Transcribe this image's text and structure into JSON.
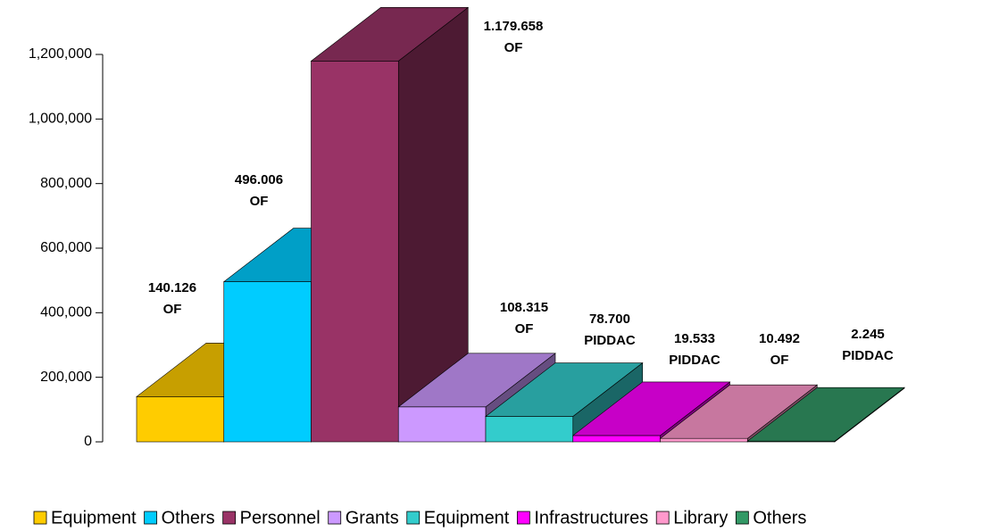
{
  "chart_data": {
    "type": "bar3d",
    "categories": [
      "Equipment",
      "Others",
      "Personnel",
      "Grants",
      "Equipment",
      "Infrastructures",
      "Library",
      "Others"
    ],
    "values": [
      140126,
      496006,
      1179658,
      108315,
      78700,
      19533,
      10492,
      2245
    ],
    "value_labels": [
      "140.126",
      "496.006",
      "1.179.658",
      "108.315",
      "78.700",
      "19.533",
      "10.492",
      "2.245"
    ],
    "fund_sources": [
      "OF",
      "OF",
      "OF",
      "OF",
      "PIDDAC",
      "PIDDAC",
      "OF",
      "PIDDAC"
    ],
    "colors": [
      "#ffcc00",
      "#00ccff",
      "#993366",
      "#cc99ff",
      "#33cccc",
      "#ff00ff",
      "#ff99cc",
      "#339966"
    ],
    "ylim": [
      0,
      1200000
    ],
    "yticks": [
      0,
      {
        "value": 200000,
        "label": "200,000"
      },
      {
        "value": 400000,
        "label": "400,000"
      },
      {
        "value": 600000,
        "label": "600,000"
      },
      {
        "value": 800000,
        "label": "800,000"
      },
      {
        "value": 1000000,
        "label": "1,000,000"
      },
      {
        "value": 1200000,
        "label": "1,200,000"
      }
    ],
    "legend": "bottom"
  }
}
